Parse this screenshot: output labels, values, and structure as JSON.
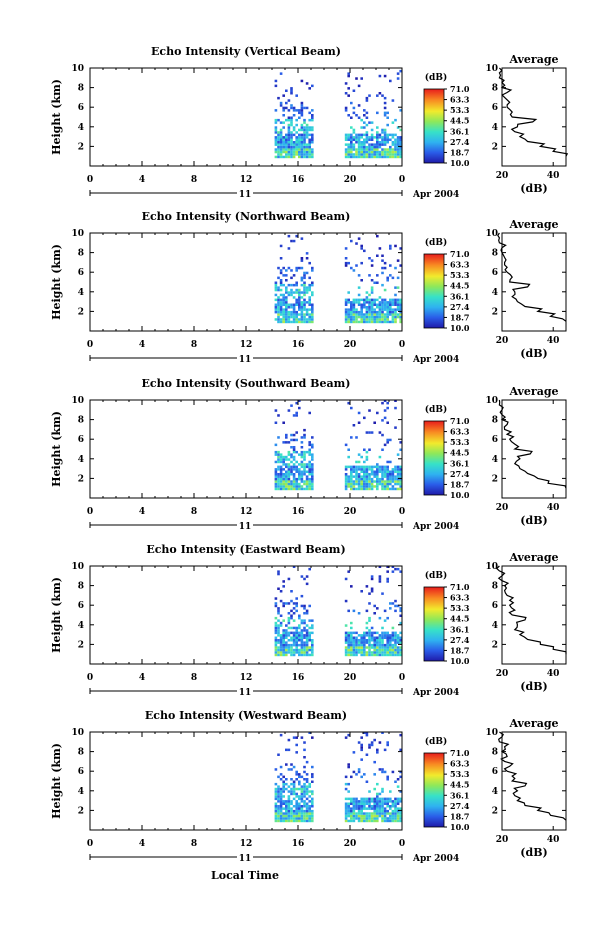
{
  "figure": {
    "x_axis_label": "Local Time",
    "date_label": "Apr 2004",
    "day_label": "11",
    "colorbar_unit": "(dB)",
    "colorbar_ticks": [
      "71.0",
      "63.3",
      "53.3",
      "44.5",
      "36.1",
      "27.4",
      "18.7",
      "10.0"
    ],
    "average_title": "Average",
    "average_unit": "(dB)"
  },
  "chart_data": [
    {
      "type": "heatmap",
      "title": "Echo Intensity (Vertical Beam)",
      "ylabel": "Height (km)",
      "xlabel": "Local Time",
      "x_range": [
        0,
        24
      ],
      "x_ticks": [
        "0",
        "4",
        "8",
        "12",
        "16",
        "20",
        "0"
      ],
      "y_range": [
        0,
        10
      ],
      "y_ticks": [
        "2",
        "4",
        "6",
        "8",
        "10"
      ],
      "data_periods_hours": [
        [
          14.2,
          17.2
        ],
        [
          19.6,
          24.0
        ]
      ],
      "average_profile": {
        "x_range": [
          20,
          45
        ],
        "x_ticks": [
          "20",
          "40"
        ],
        "heights_km": [
          1.0,
          1.5,
          2.0,
          2.5,
          3.0,
          3.5,
          4.0,
          4.5,
          5.0,
          5.5,
          6.0,
          6.5,
          7.0,
          7.5,
          8.0,
          8.5,
          9.0,
          9.5,
          10.0
        ],
        "values_db": [
          45,
          40,
          35,
          30,
          27,
          25,
          26,
          32,
          24,
          24,
          22,
          23,
          21,
          22,
          20,
          20,
          19,
          19,
          19
        ]
      }
    },
    {
      "type": "heatmap",
      "title": "Echo Intensity (Northward Beam)",
      "ylabel": "Height (km)",
      "xlabel": "Local Time",
      "x_range": [
        0,
        24
      ],
      "x_ticks": [
        "0",
        "4",
        "8",
        "12",
        "16",
        "20",
        "0"
      ],
      "y_range": [
        0,
        10
      ],
      "y_ticks": [
        "2",
        "4",
        "6",
        "8",
        "10"
      ],
      "data_periods_hours": [
        [
          14.2,
          17.2
        ],
        [
          19.6,
          24.0
        ]
      ],
      "average_profile": {
        "x_range": [
          20,
          45
        ],
        "x_ticks": [
          "20",
          "40"
        ],
        "heights_km": [
          1.0,
          1.5,
          2.0,
          2.5,
          3.0,
          3.5,
          4.0,
          4.5,
          5.0,
          5.5,
          6.0,
          6.5,
          7.0,
          7.5,
          8.0,
          8.5,
          9.0,
          9.5,
          10.0
        ],
        "values_db": [
          45,
          39,
          34,
          29,
          26,
          24,
          25,
          30,
          23,
          24,
          22,
          22,
          21,
          21,
          20,
          20,
          19,
          19,
          19
        ]
      }
    },
    {
      "type": "heatmap",
      "title": "Echo Intensity (Southward Beam)",
      "ylabel": "Height (km)",
      "xlabel": "Local Time",
      "x_range": [
        0,
        24
      ],
      "x_ticks": [
        "0",
        "4",
        "8",
        "12",
        "16",
        "20",
        "0"
      ],
      "y_range": [
        0,
        10
      ],
      "y_ticks": [
        "2",
        "4",
        "6",
        "8",
        "10"
      ],
      "data_periods_hours": [
        [
          14.2,
          17.2
        ],
        [
          19.6,
          24.0
        ]
      ],
      "average_profile": {
        "x_range": [
          20,
          45
        ],
        "x_ticks": [
          "20",
          "40"
        ],
        "heights_km": [
          1.0,
          1.5,
          2.0,
          2.5,
          3.0,
          3.5,
          4.0,
          4.5,
          5.0,
          5.5,
          6.0,
          6.5,
          7.0,
          7.5,
          8.0,
          8.5,
          9.0,
          9.5,
          10.0
        ],
        "values_db": [
          45,
          38,
          34,
          30,
          27,
          25,
          27,
          31,
          25,
          25,
          23,
          22,
          21,
          22,
          20,
          20,
          20,
          19,
          19
        ]
      }
    },
    {
      "type": "heatmap",
      "title": "Echo Intensity (Eastward Beam)",
      "ylabel": "Height (km)",
      "xlabel": "Local Time",
      "x_range": [
        0,
        24
      ],
      "x_ticks": [
        "0",
        "4",
        "8",
        "12",
        "16",
        "20",
        "0"
      ],
      "y_range": [
        0,
        10
      ],
      "y_ticks": [
        "2",
        "4",
        "6",
        "8",
        "10"
      ],
      "data_periods_hours": [
        [
          14.2,
          17.2
        ],
        [
          19.6,
          24.0
        ]
      ],
      "average_profile": {
        "x_range": [
          20,
          45
        ],
        "x_ticks": [
          "20",
          "40"
        ],
        "heights_km": [
          1.0,
          1.5,
          2.0,
          2.5,
          3.0,
          3.5,
          4.0,
          4.5,
          5.0,
          5.5,
          6.0,
          6.5,
          7.0,
          7.5,
          8.0,
          8.5,
          9.0,
          9.5,
          10.0
        ],
        "values_db": [
          45,
          40,
          35,
          30,
          27,
          25,
          26,
          29,
          24,
          25,
          23,
          23,
          22,
          21,
          21,
          20,
          20,
          19,
          19
        ]
      }
    },
    {
      "type": "heatmap",
      "title": "Echo Intensity (Westward Beam)",
      "ylabel": "Height (km)",
      "xlabel": "Local Time",
      "x_range": [
        0,
        24
      ],
      "x_ticks": [
        "0",
        "4",
        "8",
        "12",
        "16",
        "20",
        "0"
      ],
      "y_range": [
        0,
        10
      ],
      "y_ticks": [
        "2",
        "4",
        "6",
        "8",
        "10"
      ],
      "data_periods_hours": [
        [
          14.2,
          17.2
        ],
        [
          19.6,
          24.0
        ]
      ],
      "average_profile": {
        "x_range": [
          20,
          45
        ],
        "x_ticks": [
          "20",
          "40"
        ],
        "heights_km": [
          1.0,
          1.5,
          2.0,
          2.5,
          3.0,
          3.5,
          4.0,
          4.5,
          5.0,
          5.5,
          6.0,
          6.5,
          7.0,
          7.5,
          8.0,
          8.5,
          9.0,
          9.5,
          10.0
        ],
        "values_db": [
          45,
          39,
          34,
          29,
          26,
          25,
          26,
          29,
          24,
          24,
          22,
          23,
          21,
          22,
          20,
          21,
          19,
          20,
          19
        ]
      }
    }
  ]
}
